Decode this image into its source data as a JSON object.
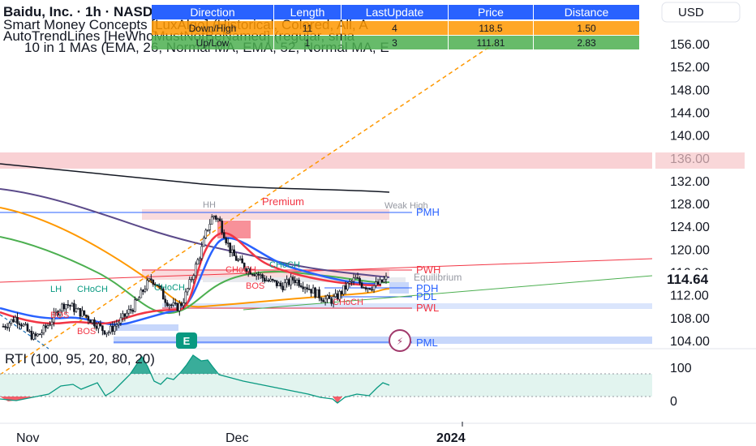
{
  "currency_button": "USD",
  "table": {
    "headers": [
      "Direction",
      "Length",
      "LastUpdate",
      "Price",
      "Distance"
    ],
    "rows": [
      {
        "dir": "Down/High",
        "len": "11",
        "last": "4",
        "price": "118.5",
        "dist": "1.50"
      },
      {
        "dir": "Up/Low",
        "len": "1",
        "last": "3",
        "price": "111.81",
        "dist": "2.83"
      }
    ]
  },
  "legends": {
    "symbol": "Baidu, Inc. · 1h · NASDAQ",
    "line1": "Smart Money Concepts [LuxAlgo] (Historical, Colored, All, A",
    "line2": "AutoTrendLines [HeWhoMustNotBeNamed] (regular, sma",
    "line3": "10 in 1 MAs (EMA, 26, Normal MA, EMA, 52, Normal MA, E"
  },
  "zones": {
    "premium": "Premium",
    "weak_high": "Weak High",
    "hh": "HH",
    "lh": "LH",
    "equilibrium": "Equilibrium",
    "pmh": "PMH",
    "pwh": "PWH",
    "pdh": "PDH",
    "pdl": "PDL",
    "pwl": "PWL",
    "pml": "PML",
    "choch": "CHoCH",
    "bos": "BOS",
    "e_badge": "E",
    "arrow_badge": "⚡"
  },
  "price_axis": {
    "ticks": [
      "156.00",
      "152.00",
      "148.00",
      "144.00",
      "140.00",
      "136.00",
      "132.00",
      "128.00",
      "124.00",
      "120.00",
      "116.00",
      "112.00",
      "108.00",
      "104.00"
    ],
    "last_price": "114.64"
  },
  "rti": {
    "label": "RTI (100, 95, 20, 80, 20)",
    "ticks": [
      "100",
      "0"
    ]
  },
  "time_axis": {
    "labels": [
      "Nov",
      "Dec",
      "2024"
    ]
  },
  "colors": {
    "header_blue": "#2962ff",
    "row_orange": "#ff9800",
    "row_green": "#4caf50",
    "bear": "#f23645",
    "bull": "#089981",
    "ema_red": "#f23645",
    "ma_blue": "#2962ff",
    "ma_orange": "#ff9800",
    "ma_green": "#4caf50",
    "ma_purple": "#5b4a8a",
    "ma_black": "#131722"
  },
  "chart_data": {
    "type": "candlestick",
    "symbol": "BIDU",
    "timeframe": "1h",
    "ylim": [
      101,
      159
    ],
    "x_labels": [
      "Nov",
      "Dec",
      "2024"
    ],
    "levels": {
      "PMH": 126.5,
      "PWH": 116.5,
      "PDH": 113.8,
      "PDL": 112.2,
      "PWL": 109.8,
      "PML": 104.2
    },
    "last_price": 114.64,
    "close_path": [
      106.5,
      107.2,
      108.0,
      107.0,
      105.5,
      104.5,
      105.2,
      106.4,
      107.8,
      109.5,
      110.5,
      110.0,
      109.2,
      108.6,
      107.8,
      107.0,
      106.0,
      105.5,
      106.5,
      107.5,
      108.7,
      109.8,
      111.5,
      113.5,
      114.8,
      113.8,
      111.5,
      110.4,
      109.7,
      110.6,
      113.4,
      116.5,
      119.5,
      123.5,
      126.0,
      125.0,
      122.0,
      119.2,
      118.0,
      117.0,
      116.3,
      115.8,
      115.0,
      114.4,
      114.1,
      113.5,
      114.0,
      114.8,
      114.2,
      113.6,
      112.8,
      112.0,
      111.3,
      111.0,
      111.6,
      112.8,
      113.9,
      114.8,
      113.9,
      113.4,
      113.6,
      114.0,
      114.8
    ]
  }
}
